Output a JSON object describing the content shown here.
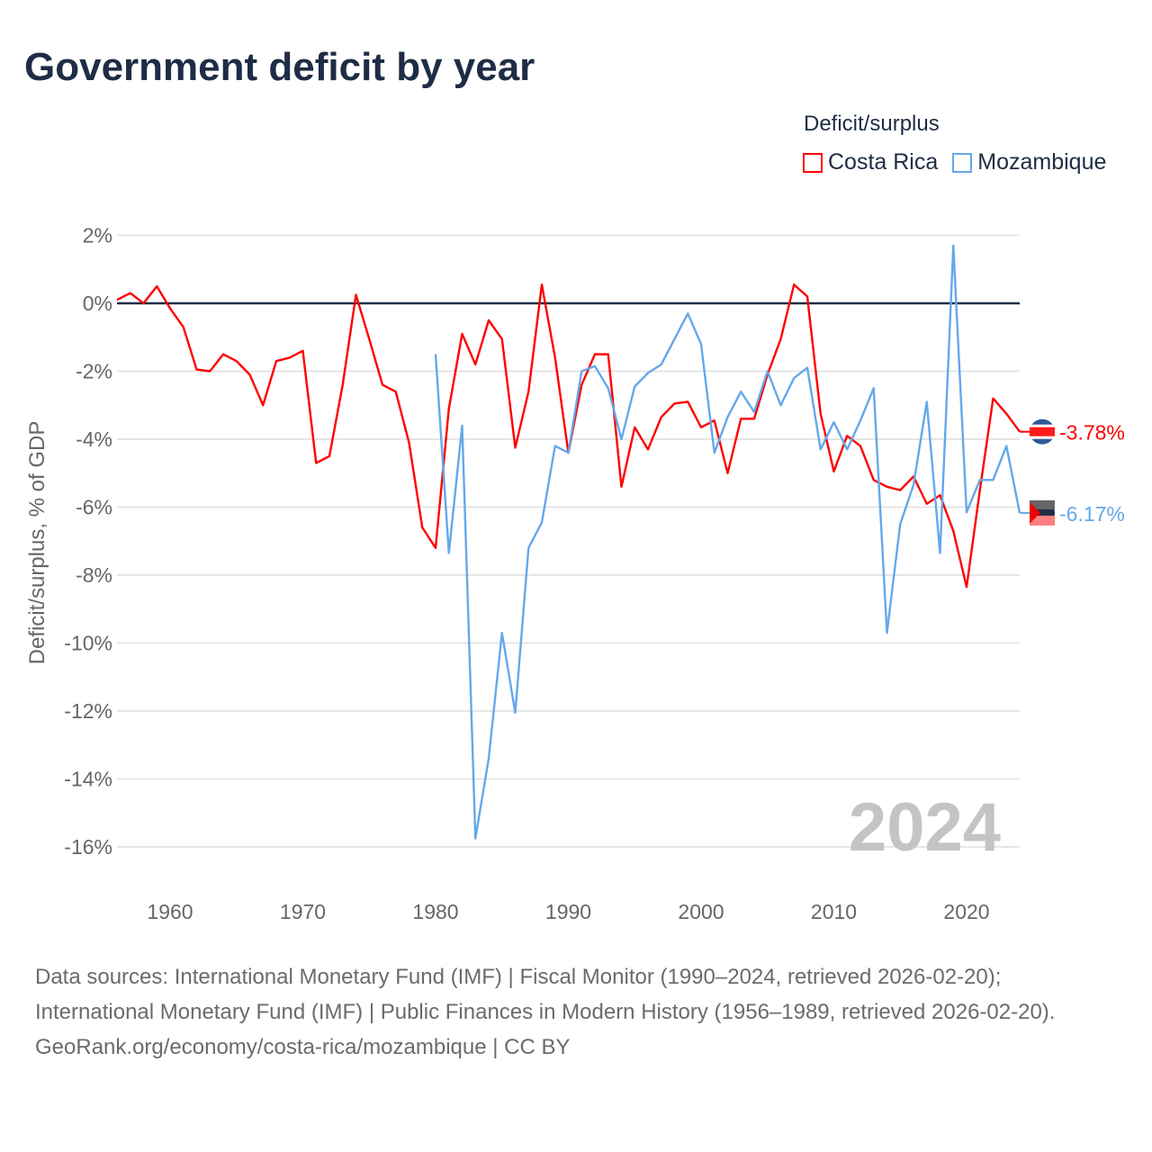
{
  "chart_data": {
    "type": "line",
    "title": "Government deficit by year",
    "ylabel": "Deficit/surplus, % of GDP",
    "xlabel": "",
    "xlim": [
      1956,
      2024
    ],
    "ylim": [
      -17,
      2.5
    ],
    "x_ticks": [
      1960,
      1970,
      1980,
      1990,
      2000,
      2010,
      2020
    ],
    "y_ticks": [
      2,
      0,
      -2,
      -4,
      -6,
      -8,
      -10,
      -12,
      -14,
      -16
    ],
    "y_tick_labels": [
      "2%",
      "0%",
      "-2%",
      "-4%",
      "-6%",
      "-8%",
      "-10%",
      "-12%",
      "-14%",
      "-16%"
    ],
    "x_tick_labels": [
      "1960",
      "1970",
      "1980",
      "1990",
      "2000",
      "2010",
      "2020"
    ],
    "legend_title": "Deficit/surplus",
    "legend_position": "top-right",
    "year_watermark": "2024",
    "series": [
      {
        "name": "Costa Rica",
        "color": "#ff0000",
        "start_year": 1956,
        "end_label": "-3.78%",
        "values": [
          0.1,
          0.3,
          0.0,
          0.5,
          -0.15,
          -0.7,
          -1.95,
          -2.0,
          -1.5,
          -1.7,
          -2.1,
          -3.0,
          -1.7,
          -1.6,
          -1.4,
          -4.7,
          -4.5,
          -2.4,
          0.25,
          -1.05,
          -2.4,
          -2.6,
          -4.1,
          -6.6,
          -7.2,
          -3.1,
          -0.9,
          -1.8,
          -0.5,
          -1.05,
          -4.25,
          -2.6,
          0.55,
          -1.6,
          -4.4,
          -2.4,
          -1.5,
          -1.5,
          -5.4,
          -3.65,
          -4.3,
          -3.35,
          -2.95,
          -2.9,
          -3.65,
          -3.45,
          -5.0,
          -3.4,
          -3.4,
          -2.1,
          -1.05,
          0.55,
          0.2,
          -3.25,
          -4.95,
          -3.9,
          -4.2,
          -5.2,
          -5.4,
          -5.5,
          -5.1,
          -5.9,
          -5.65,
          -6.7,
          -8.35,
          -5.5,
          -2.8,
          -3.25,
          -3.78
        ]
      },
      {
        "name": "Mozambique",
        "color": "#64a8ea",
        "start_year": 1980,
        "end_label": "-6.17%",
        "values": [
          -1.5,
          -7.35,
          -3.6,
          -15.75,
          -13.4,
          -9.7,
          -12.05,
          -7.2,
          -6.45,
          -4.2,
          -4.4,
          -2.0,
          -1.85,
          -2.5,
          -4.0,
          -2.45,
          -2.05,
          -1.8,
          -1.05,
          -0.3,
          -1.2,
          -4.4,
          -3.35,
          -2.6,
          -3.2,
          -2.0,
          -3.0,
          -2.2,
          -1.9,
          -4.3,
          -3.5,
          -4.3,
          -3.45,
          -2.5,
          -9.7,
          -6.5,
          -5.35,
          -2.9,
          -7.35,
          1.7,
          -6.15,
          -5.2,
          -5.2,
          -4.2,
          -6.17
        ]
      }
    ]
  },
  "footer": {
    "sources": "Data sources: International Monetary Fund (IMF) | Fiscal Monitor (1990–2024, retrieved 2026-02-20); International Monetary Fund (IMF) | Public Finances in Modern History (1956–1989, retrieved 2026-02-20).",
    "credit": "GeoRank.org/economy/costa-rica/mozambique | CC BY"
  }
}
